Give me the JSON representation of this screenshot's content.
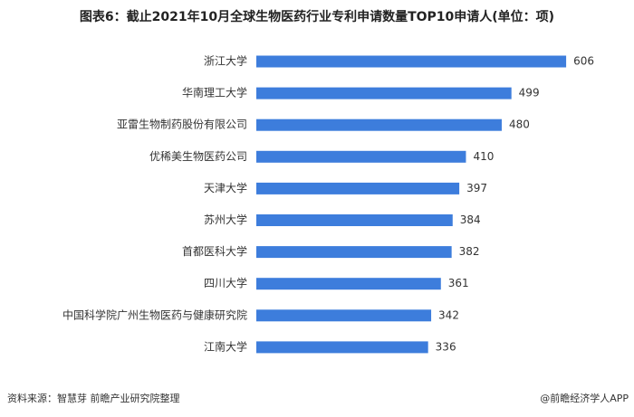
{
  "chart_data": {
    "type": "bar",
    "orientation": "horizontal",
    "title": "图表6：截止2021年10月全球生物医药行业专利申请数量TOP10申请人(单位：项)",
    "categories": [
      "浙江大学",
      "华南理工大学",
      "亚雷生物制药股份有限公司",
      "优稀美生物医药公司",
      "天津大学",
      "苏州大学",
      "首都医科大学",
      "四川大学",
      "中国科学院广州生物医药与健康研究院",
      "江南大学"
    ],
    "values": [
      606,
      499,
      480,
      410,
      397,
      384,
      382,
      361,
      342,
      336
    ],
    "color": "#3d7ddc",
    "source": "资料来源：智慧芽 前瞻产业研究院整理",
    "credit": "@前瞻经济学人APP"
  }
}
